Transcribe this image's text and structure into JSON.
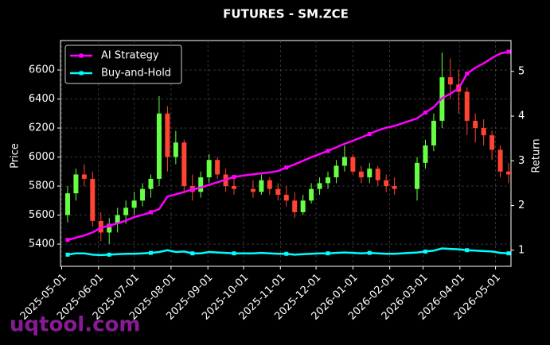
{
  "chart_data": {
    "type": "candlestick",
    "title": "FUTURES - SM.ZCE",
    "ylabel": "Price",
    "y2label": "Return",
    "watermark": "uqtool.com",
    "xlim": [
      "2025-04-30",
      "2026-05-14"
    ],
    "xticks": [
      "2025-05-01",
      "2025-06-01",
      "2025-07-01",
      "2025-08-01",
      "2025-09-01",
      "2025-10-01",
      "2025-11-01",
      "2025-12-01",
      "2026-01-01",
      "2026-02-01",
      "2026-03-01",
      "2026-04-01",
      "2026-05-01"
    ],
    "ylim": [
      5247,
      6803
    ],
    "yticks": [
      5400,
      5600,
      5800,
      6000,
      6200,
      6400,
      6600
    ],
    "y2lim": [
      0.64,
      5.69
    ],
    "y2ticks": [
      1,
      2,
      3,
      4,
      5
    ],
    "grid": true,
    "legend": "upper left",
    "up_color": "#66ff44",
    "down_color": "#ff4433",
    "x": [
      "2025-05-06",
      "2025-05-13",
      "2025-05-20",
      "2025-05-27",
      "2025-06-03",
      "2025-06-10",
      "2025-06-17",
      "2025-06-24",
      "2025-07-01",
      "2025-07-08",
      "2025-07-15",
      "2025-07-22",
      "2025-07-29",
      "2025-08-05",
      "2025-08-12",
      "2025-08-19",
      "2025-08-26",
      "2025-09-02",
      "2025-09-09",
      "2025-09-16",
      "2025-09-23",
      "2025-10-09",
      "2025-10-16",
      "2025-10-23",
      "2025-10-30",
      "2025-11-06",
      "2025-11-13",
      "2025-11-20",
      "2025-11-27",
      "2025-12-04",
      "2025-12-11",
      "2025-12-18",
      "2025-12-25",
      "2026-01-01",
      "2026-01-08",
      "2026-01-15",
      "2026-01-22",
      "2026-01-29",
      "2026-02-05",
      "2026-02-24",
      "2026-03-03",
      "2026-03-10",
      "2026-03-17",
      "2026-03-24",
      "2026-03-31",
      "2026-04-07",
      "2026-04-14",
      "2026-04-21",
      "2026-04-28",
      "2026-05-05",
      "2026-05-12"
    ],
    "open": [
      5600,
      5750,
      5880,
      5850,
      5560,
      5480,
      5540,
      5600,
      5650,
      5700,
      5780,
      5850,
      6300,
      6000,
      6100,
      5800,
      5760,
      5860,
      5980,
      5880,
      5800,
      5780,
      5760,
      5840,
      5780,
      5740,
      5700,
      5620,
      5700,
      5780,
      5820,
      5860,
      5940,
      6000,
      5900,
      5860,
      5920,
      5840,
      5800,
      5780,
      5960,
      6080,
      6250,
      6550,
      6500,
      6450,
      6250,
      6200,
      6150,
      6050,
      5900
    ],
    "high": [
      5800,
      5920,
      5950,
      5900,
      5620,
      5580,
      5650,
      5700,
      5760,
      5820,
      5880,
      6420,
      6350,
      6180,
      6120,
      5880,
      5900,
      6020,
      6000,
      5920,
      5860,
      5840,
      5880,
      5860,
      5820,
      5800,
      5760,
      5740,
      5820,
      5860,
      5900,
      5980,
      6080,
      6020,
      5940,
      5960,
      5940,
      5880,
      5860,
      6000,
      6120,
      6300,
      6720,
      6680,
      6600,
      6480,
      6300,
      6260,
      6180,
      6080,
      5960
    ],
    "low": [
      5550,
      5700,
      5800,
      5520,
      5420,
      5400,
      5480,
      5540,
      5600,
      5660,
      5720,
      5800,
      5900,
      5950,
      5750,
      5700,
      5720,
      5820,
      5850,
      5760,
      5740,
      5720,
      5740,
      5740,
      5700,
      5660,
      5580,
      5600,
      5680,
      5740,
      5780,
      5820,
      5900,
      5880,
      5820,
      5820,
      5800,
      5760,
      5740,
      5700,
      5920,
      6040,
      6200,
      6400,
      6300,
      6150,
      6100,
      6080,
      5980,
      5860,
      5820
    ],
    "close": [
      5750,
      5880,
      5850,
      5560,
      5480,
      5540,
      5600,
      5650,
      5700,
      5780,
      5850,
      6300,
      6000,
      6100,
      5800,
      5760,
      5860,
      5980,
      5880,
      5800,
      5780,
      5760,
      5840,
      5780,
      5740,
      5700,
      5620,
      5700,
      5780,
      5820,
      5860,
      5940,
      6000,
      5900,
      5860,
      5920,
      5840,
      5800,
      5780,
      5960,
      6080,
      6250,
      6550,
      6500,
      6450,
      6250,
      6200,
      6150,
      6050,
      5900,
      5880
    ],
    "series": [
      {
        "name": "AI Strategy",
        "color": "#ff00ff",
        "axis": "y2",
        "values": [
          1.23,
          1.28,
          1.33,
          1.4,
          1.5,
          1.55,
          1.6,
          1.66,
          1.74,
          1.79,
          1.85,
          1.92,
          2.2,
          2.25,
          2.3,
          2.36,
          2.4,
          2.46,
          2.52,
          2.58,
          2.64,
          2.7,
          2.72,
          2.74,
          2.77,
          2.85,
          2.92,
          3.0,
          3.08,
          3.15,
          3.22,
          3.3,
          3.38,
          3.45,
          3.52,
          3.6,
          3.68,
          3.74,
          3.78,
          3.95,
          4.08,
          4.2,
          4.4,
          4.5,
          4.62,
          4.95,
          5.08,
          5.18,
          5.3,
          5.4,
          5.44
        ]
      },
      {
        "name": "Buy-and-Hold",
        "color": "#00ffff",
        "axis": "y2",
        "values": [
          0.9,
          0.93,
          0.93,
          0.9,
          0.89,
          0.9,
          0.91,
          0.92,
          0.92,
          0.93,
          0.94,
          0.96,
          1.0,
          0.96,
          0.97,
          0.93,
          0.93,
          0.96,
          0.95,
          0.94,
          0.93,
          0.93,
          0.94,
          0.93,
          0.92,
          0.92,
          0.9,
          0.91,
          0.92,
          0.93,
          0.93,
          0.94,
          0.95,
          0.94,
          0.93,
          0.94,
          0.93,
          0.92,
          0.92,
          0.95,
          0.97,
          0.99,
          1.04,
          1.03,
          1.02,
          1.0,
          0.99,
          0.98,
          0.97,
          0.94,
          0.93
        ]
      }
    ]
  }
}
